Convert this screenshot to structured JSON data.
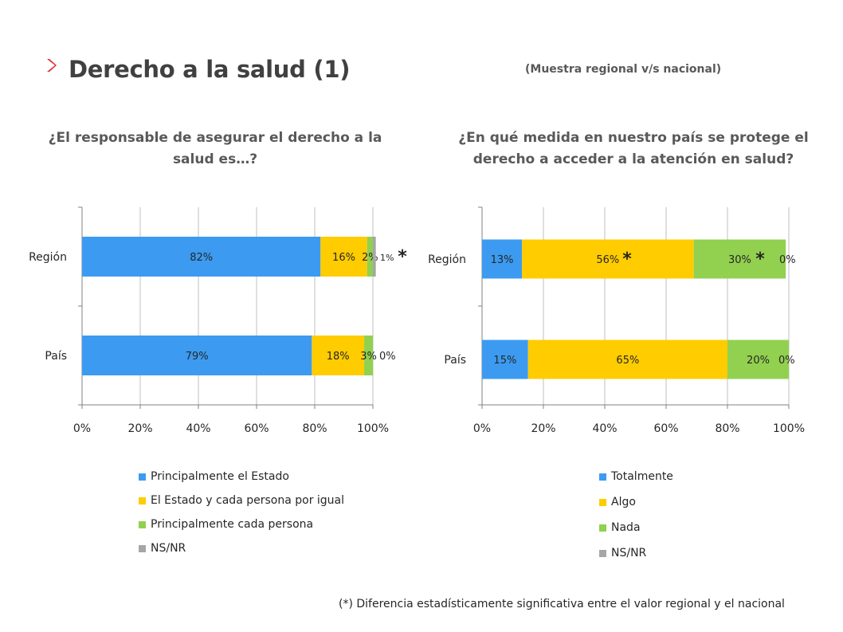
{
  "header": {
    "title": "Derecho a la salud (1)",
    "subtitle": "(Muestra regional v/s nacional)"
  },
  "footnote": "(*) Diferencia estadísticamente significativa entre el valor regional y el nacional",
  "colors": {
    "accent": "#E3262B",
    "blue": "#3C9BF0",
    "yellow": "#FFCC00",
    "green": "#92D050",
    "gray": "#A6A6A6"
  },
  "chart_data": [
    {
      "type": "bar",
      "orientation": "horizontal",
      "stacked": true,
      "title": "¿El responsable de asegurar el derecho a la salud es…?",
      "categories": [
        "Región",
        "País"
      ],
      "xlim": [
        0,
        100
      ],
      "x_ticks": [
        "0%",
        "20%",
        "40%",
        "60%",
        "80%",
        "100%"
      ],
      "grid": true,
      "legend_position": "bottom",
      "series": [
        {
          "name": "Principalmente el Estado",
          "color": "#3C9BF0",
          "values": [
            82,
            79
          ],
          "labels": [
            "82%",
            "79%"
          ]
        },
        {
          "name": "El Estado y cada persona por igual",
          "color": "#FFCC00",
          "values": [
            16,
            18
          ],
          "labels": [
            "16%",
            "18%"
          ]
        },
        {
          "name": "Principalmente cada persona",
          "color": "#92D050",
          "values": [
            2,
            3
          ],
          "labels": [
            "2%",
            "3%"
          ]
        },
        {
          "name": "NS/NR",
          "color": "#A6A6A6",
          "values": [
            1,
            0
          ],
          "labels": [
            "1%",
            "0%"
          ]
        }
      ],
      "significance_marks": [
        {
          "category": "Región",
          "series": "NS/NR",
          "mark": "*"
        }
      ]
    },
    {
      "type": "bar",
      "orientation": "horizontal",
      "stacked": true,
      "title": "¿En qué medida en nuestro país se protege el derecho a acceder a la atención en salud?",
      "categories": [
        "Región",
        "País"
      ],
      "xlim": [
        0,
        100
      ],
      "x_ticks": [
        "0%",
        "20%",
        "40%",
        "60%",
        "80%",
        "100%"
      ],
      "grid": true,
      "legend_position": "bottom",
      "series": [
        {
          "name": "Totalmente",
          "color": "#3C9BF0",
          "values": [
            13,
            15
          ],
          "labels": [
            "13%",
            "15%"
          ]
        },
        {
          "name": "Algo",
          "color": "#FFCC00",
          "values": [
            56,
            65
          ],
          "labels": [
            "56%",
            "65%"
          ]
        },
        {
          "name": "Nada",
          "color": "#92D050",
          "values": [
            30,
            20
          ],
          "labels": [
            "30%",
            "20%"
          ]
        },
        {
          "name": "NS/NR",
          "color": "#A6A6A6",
          "values": [
            0,
            0
          ],
          "labels": [
            "0%",
            "0%"
          ]
        }
      ],
      "significance_marks": [
        {
          "category": "Región",
          "series": "Algo",
          "mark": "*"
        },
        {
          "category": "Región",
          "series": "Nada",
          "mark": "*"
        }
      ]
    }
  ]
}
